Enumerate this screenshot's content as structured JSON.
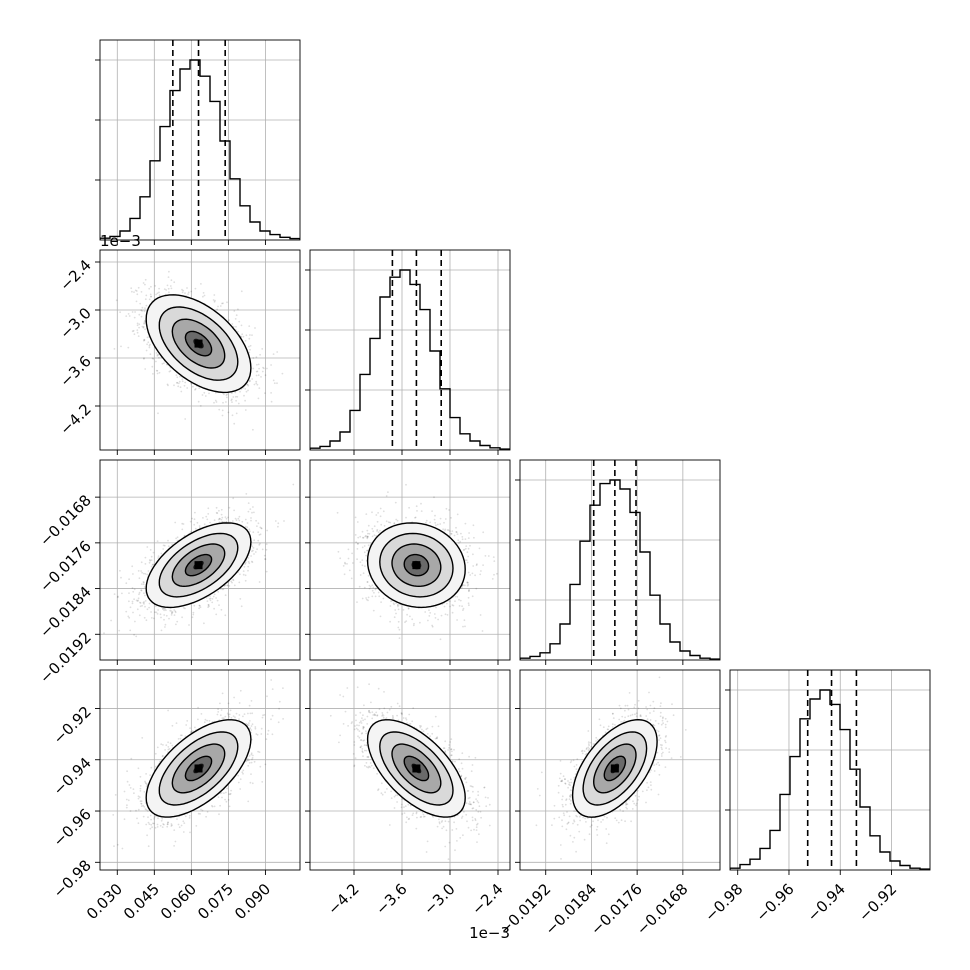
{
  "chart_data": {
    "type": "scatter",
    "subtype": "corner-plot",
    "grid": true,
    "n_params": 4,
    "histogram_quantile_lines": [
      0.16,
      0.5,
      0.84
    ],
    "contour_levels": 4,
    "params": [
      {
        "range": [
          0.023,
          0.104
        ],
        "ticks": [
          0.03,
          0.045,
          0.06,
          0.075,
          0.09
        ],
        "tick_labels": [
          "0.030",
          "0.045",
          "0.060",
          "0.075",
          "0.090"
        ],
        "offset_label": "",
        "quantiles": [
          0.0525,
          0.0629,
          0.0737
        ],
        "hist": [
          1,
          2,
          5,
          12,
          24,
          44,
          63,
          83,
          95,
          100,
          91,
          77,
          55,
          34,
          19,
          10,
          5,
          3,
          1.5,
          0.8
        ]
      },
      {
        "range": [
          -4.75,
          -2.25
        ],
        "ticks": [
          -4.2,
          -3.6,
          -3.0,
          -2.4
        ],
        "tick_labels": [
          "−4.2",
          "−3.6",
          "−3.0",
          "−2.4"
        ],
        "offset_label": "1e−3",
        "quantiles": [
          -3.72,
          -3.42,
          -3.11
        ],
        "hist": [
          1,
          2,
          5,
          10,
          22,
          42,
          62,
          85,
          96,
          100,
          92,
          78,
          55,
          34,
          18,
          9,
          5,
          2.5,
          1.2,
          0.5
        ]
      },
      {
        "range": [
          -0.01965,
          -0.01615
        ],
        "ticks": [
          -0.0192,
          -0.0184,
          -0.0176,
          -0.0168
        ],
        "tick_labels": [
          "−0.0192",
          "−0.0184",
          "−0.0176",
          "−0.0168"
        ],
        "offset_label": "",
        "quantiles": [
          -0.01836,
          -0.01799,
          -0.01762
        ],
        "hist": [
          1,
          2,
          4,
          9,
          20,
          42,
          66,
          86,
          98,
          100,
          95,
          82,
          60,
          36,
          20,
          10,
          5,
          2.5,
          1,
          0.5
        ]
      },
      {
        "range": [
          -0.983,
          -0.905
        ],
        "ticks": [
          -0.98,
          -0.96,
          -0.94,
          -0.92
        ],
        "tick_labels": [
          "−0.98",
          "−0.96",
          "−0.94",
          "−0.92"
        ],
        "offset_label": "",
        "quantiles": [
          -0.9527,
          -0.9434,
          -0.9337
        ],
        "hist": [
          1,
          3,
          6,
          12,
          22,
          42,
          63,
          84,
          95,
          100,
          92,
          78,
          56,
          35,
          19,
          10,
          5,
          2.5,
          1,
          0.5
        ]
      }
    ],
    "correlations": {
      "1-0": -0.5,
      "2-0": 0.55,
      "2-1": -0.1,
      "3-0": 0.6,
      "3-1": -0.6,
      "3-2": 0.55
    },
    "y_offset_labels": [
      {
        "row": 1,
        "text": "1e−3"
      }
    ]
  }
}
